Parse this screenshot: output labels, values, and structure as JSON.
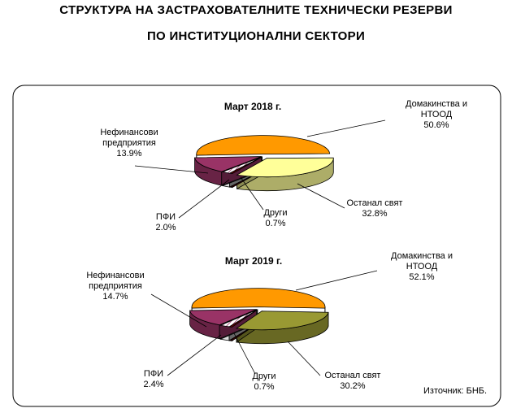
{
  "page": {
    "title_line1": "СТРУКТУРА НА ЗАСТРАХОВАТЕЛНИТЕ ТЕХНИЧЕСКИ РЕЗЕРВИ",
    "title_line2": "ПО ИНСТИТУЦИОНАЛНИ СЕКТОРИ",
    "source": "Източник: БНБ."
  },
  "colors": {
    "households": "#FF9900",
    "rest_of_world": "#FFFF99",
    "rest_of_world_2019": "#999933",
    "other": "#660000",
    "pfi": "#ffffff",
    "nonfinancial": "#993366"
  },
  "chart_data": [
    {
      "type": "pie",
      "subtype": "3d-exploded",
      "title": "Март 2018 г.",
      "unit": "%",
      "slices": [
        {
          "label_lines": [
            "Домакинства и",
            "НТООД"
          ],
          "value": 50.6,
          "value_label": "50.6%",
          "color": "#FF9900"
        },
        {
          "label_lines": [
            "Останал свят"
          ],
          "value": 32.8,
          "value_label": "32.8%",
          "color": "#FFFF99"
        },
        {
          "label_lines": [
            "Други"
          ],
          "value": 0.7,
          "value_label": "0.7%",
          "color": "#660000"
        },
        {
          "label_lines": [
            "ПФИ"
          ],
          "value": 2.0,
          "value_label": "2.0%",
          "color": "#ffffff"
        },
        {
          "label_lines": [
            "Нефинансови",
            "предприятия"
          ],
          "value": 13.9,
          "value_label": "13.9%",
          "color": "#993366"
        }
      ]
    },
    {
      "type": "pie",
      "subtype": "3d-exploded",
      "title": "Март 2019 г.",
      "unit": "%",
      "slices": [
        {
          "label_lines": [
            "Домакинства и",
            "НТООД"
          ],
          "value": 52.1,
          "value_label": "52.1%",
          "color": "#FF9900"
        },
        {
          "label_lines": [
            "Останал свят"
          ],
          "value": 30.2,
          "value_label": "30.2%",
          "color": "#999933"
        },
        {
          "label_lines": [
            "Други"
          ],
          "value": 0.7,
          "value_label": "0.7%",
          "color": "#660000"
        },
        {
          "label_lines": [
            "ПФИ"
          ],
          "value": 2.4,
          "value_label": "2.4%",
          "color": "#ffffff"
        },
        {
          "label_lines": [
            "Нефинансови",
            "предприятия"
          ],
          "value": 14.7,
          "value_label": "14.7%",
          "color": "#993366"
        }
      ]
    }
  ]
}
